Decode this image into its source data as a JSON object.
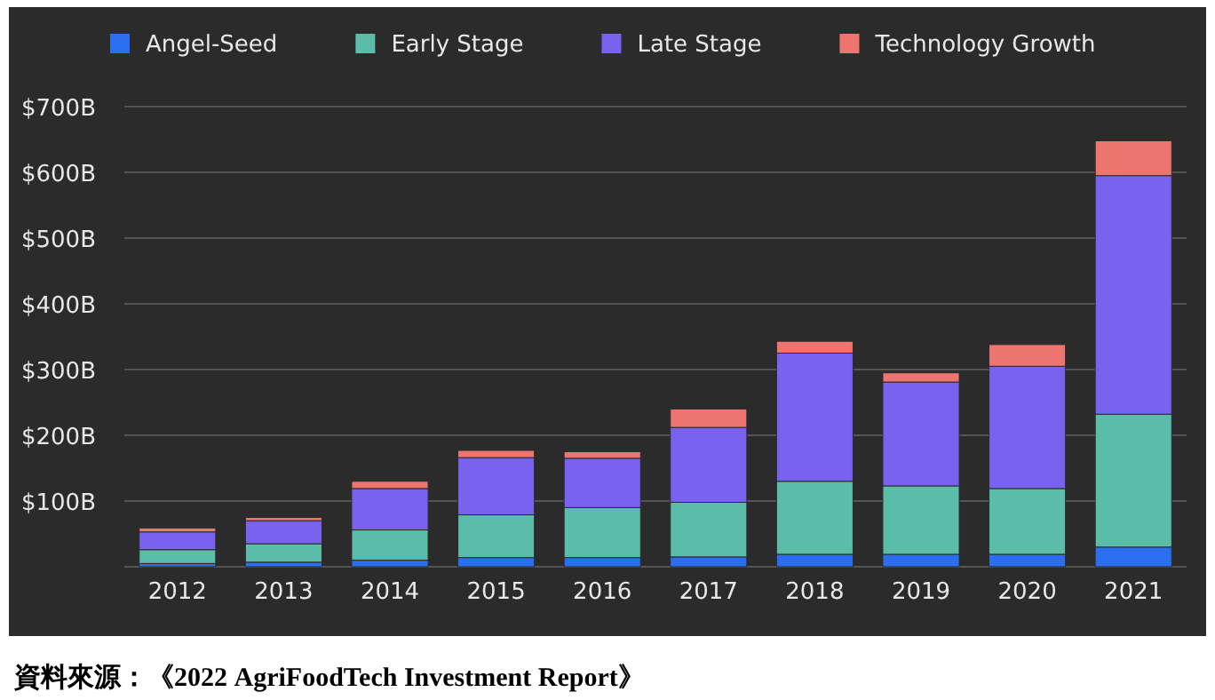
{
  "chart_data": {
    "type": "bar",
    "stacked": true,
    "categories": [
      "2012",
      "2013",
      "2014",
      "2015",
      "2016",
      "2017",
      "2018",
      "2019",
      "2020",
      "2021"
    ],
    "series": [
      {
        "name": "Angel-Seed",
        "color": "#2b6ff0",
        "values": [
          5,
          7,
          10,
          14,
          14,
          15,
          19,
          19,
          19,
          30
        ]
      },
      {
        "name": "Early Stage",
        "color": "#5bbda7",
        "values": [
          21,
          28,
          46,
          65,
          76,
          83,
          111,
          104,
          100,
          202
        ]
      },
      {
        "name": "Late Stage",
        "color": "#7962ee",
        "values": [
          27,
          35,
          63,
          87,
          75,
          114,
          195,
          158,
          186,
          363
        ]
      },
      {
        "name": "Technology Growth",
        "color": "#ec7570",
        "values": [
          6,
          5,
          11,
          11,
          10,
          28,
          18,
          14,
          33,
          53
        ]
      }
    ],
    "ylim": [
      0,
      700
    ],
    "yticks": [
      {
        "value": 0,
        "label": null
      },
      {
        "value": 100,
        "label": "$100B"
      },
      {
        "value": 200,
        "label": "$200B"
      },
      {
        "value": 300,
        "label": "$300B"
      },
      {
        "value": 400,
        "label": "$400B"
      },
      {
        "value": 500,
        "label": "$500B"
      },
      {
        "value": 600,
        "label": "$600B"
      },
      {
        "value": 700,
        "label": "$700B"
      }
    ],
    "grid": "y",
    "legend": "top",
    "annotations": [
      "資料來源：《2022 AgriFoodTech Investment Report》"
    ]
  }
}
